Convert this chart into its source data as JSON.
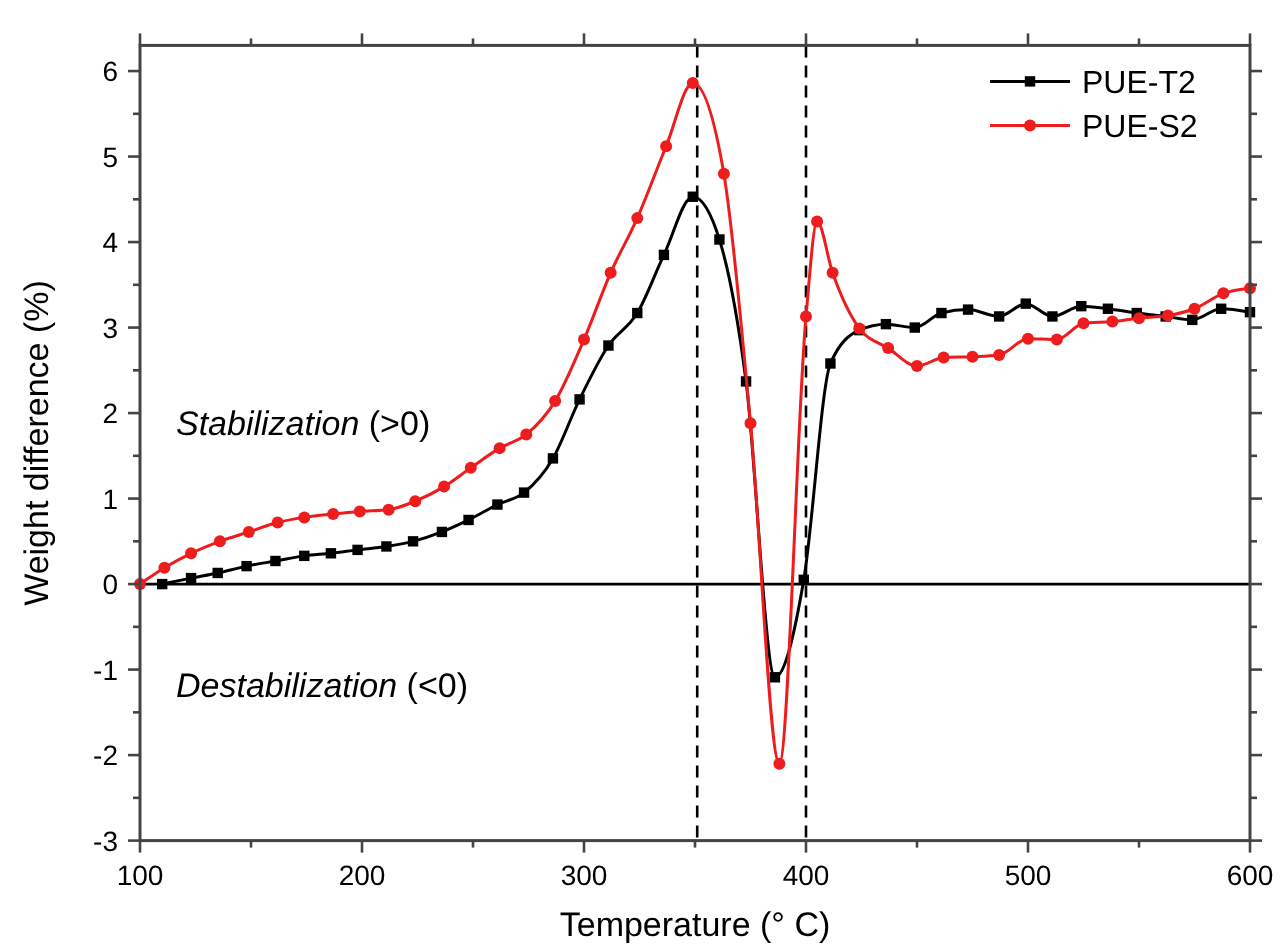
{
  "chart_data": {
    "type": "line",
    "xlabel": "Temperature (° C)",
    "ylabel": "Weight difference (%)",
    "xlim": [
      100,
      600
    ],
    "xticks": [
      100,
      {
        "value": 150,
        "label": null
      },
      200,
      {
        "value": 250,
        "label": null
      },
      300,
      {
        "value": 350,
        "label": null
      },
      400,
      {
        "value": 450,
        "label": null
      },
      500,
      {
        "value": 550,
        "label": null
      },
      600
    ],
    "ylim": [
      -3,
      6.3
    ],
    "yticks": [
      -3,
      {
        "value": -2.5,
        "label": null
      },
      -2,
      {
        "value": -1.5,
        "label": null
      },
      -1,
      {
        "value": -0.5,
        "label": null
      },
      0,
      {
        "value": 0.5,
        "label": null
      },
      1,
      {
        "value": 1.5,
        "label": null
      },
      2,
      {
        "value": 2.5,
        "label": null
      },
      3,
      {
        "value": 3.5,
        "label": null
      },
      4,
      {
        "value": 4.5,
        "label": null
      },
      5,
      {
        "value": 5.5,
        "label": null
      },
      6
    ],
    "line_style": "solid",
    "legend": "top right",
    "grid": false,
    "series": [
      {
        "name": "PUE-T2",
        "color": "#000000",
        "marker": "square",
        "x": [
          110,
          123,
          135,
          148,
          161,
          174,
          186,
          198,
          211,
          223,
          236,
          248,
          261,
          273,
          286,
          298,
          311,
          324,
          336,
          349,
          361,
          373,
          386,
          399,
          411,
          424,
          436,
          449,
          461,
          473,
          487,
          499,
          511,
          524,
          536,
          549,
          562,
          574,
          587,
          600
        ],
        "values": [
          0.0,
          0.07,
          0.13,
          0.21,
          0.27,
          0.33,
          0.36,
          0.4,
          0.44,
          0.5,
          0.61,
          0.75,
          0.93,
          1.07,
          1.47,
          2.16,
          2.79,
          3.17,
          3.85,
          4.53,
          4.03,
          2.37,
          -1.09,
          0.05,
          2.58,
          2.97,
          3.04,
          3.0,
          3.17,
          3.21,
          3.13,
          3.28,
          3.13,
          3.25,
          3.22,
          3.17,
          3.13,
          3.09,
          3.22,
          3.18
        ]
      },
      {
        "name": "PUE-S2",
        "color": "#ee1c1c",
        "marker": "circle",
        "x": [
          100,
          111,
          123,
          136,
          149,
          162,
          174,
          187,
          199,
          212,
          224,
          237,
          249,
          262,
          274,
          287,
          300,
          312,
          324,
          337,
          349,
          363,
          375,
          388,
          400,
          405,
          412,
          424,
          437,
          450,
          462,
          475,
          487,
          500,
          513,
          525,
          538,
          550,
          563,
          575,
          588,
          600
        ],
        "values": [
          0.0,
          0.19,
          0.36,
          0.5,
          0.61,
          0.72,
          0.78,
          0.82,
          0.85,
          0.87,
          0.97,
          1.14,
          1.36,
          1.59,
          1.75,
          2.14,
          2.86,
          3.64,
          4.28,
          5.12,
          5.86,
          4.8,
          1.88,
          -2.1,
          3.13,
          4.24,
          3.64,
          2.99,
          2.76,
          2.55,
          2.65,
          2.66,
          2.68,
          2.87,
          2.86,
          3.05,
          3.07,
          3.11,
          3.14,
          3.22,
          3.4,
          3.46
        ]
      }
    ],
    "ref_lines": [
      {
        "axis": "x",
        "value": 351,
        "line_style": "dashed",
        "color": "#000000"
      },
      {
        "axis": "x",
        "value": 400,
        "line_style": "dashed",
        "color": "#000000"
      },
      {
        "axis": "y",
        "value": 0,
        "line_style": "solid",
        "color": "#000000"
      }
    ],
    "annotations": [
      "Stabilization (>0)",
      "Destabilization (<0)"
    ]
  }
}
